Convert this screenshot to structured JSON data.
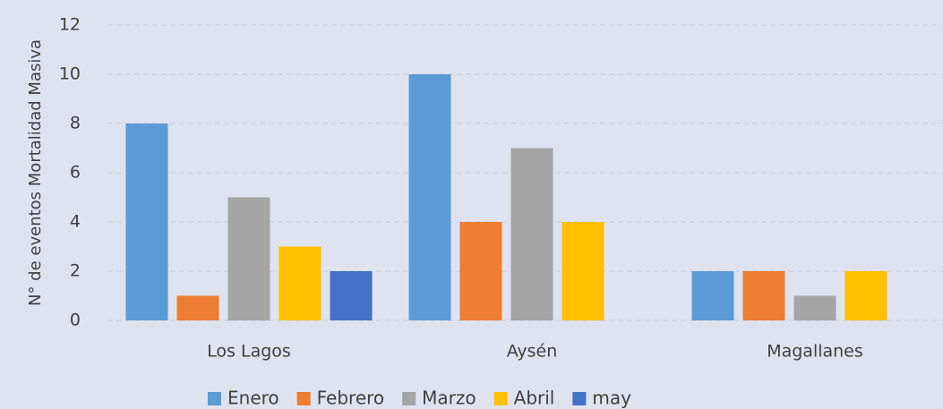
{
  "chart_data": {
    "type": "bar",
    "y_label": "N° de eventos Mortalidad Masiva",
    "categories": [
      "Los Lagos",
      "Aysén",
      "Magallanes"
    ],
    "series": [
      {
        "name": "Enero",
        "color": "#5b9bd5",
        "values": [
          8,
          10,
          2
        ]
      },
      {
        "name": "Febrero",
        "color": "#ed7d31",
        "values": [
          1,
          4,
          2
        ]
      },
      {
        "name": "Marzo",
        "color": "#a5a5a5",
        "values": [
          5,
          7,
          1
        ]
      },
      {
        "name": "Abril",
        "color": "#ffc000",
        "values": [
          3,
          4,
          2
        ]
      },
      {
        "name": "may",
        "color": "#4472c4",
        "values": [
          2,
          null,
          null
        ]
      }
    ],
    "ylim": [
      0,
      12
    ],
    "yticks": [
      0,
      2,
      4,
      6,
      8,
      10,
      12
    ],
    "grid": true,
    "legend": "bottom"
  }
}
